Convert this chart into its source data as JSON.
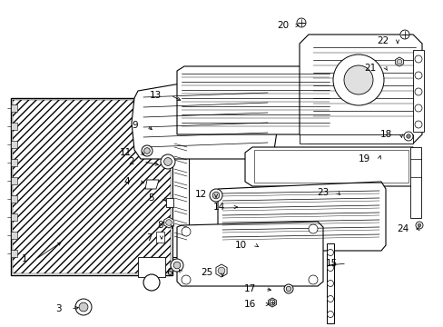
{
  "bg": "#ffffff",
  "lc": "#000000",
  "gray": "#aaaaaa",
  "light": "#e8e8e8",
  "mid": "#cccccc",
  "label_positions": {
    "1": [
      30,
      285,
      70,
      265
    ],
    "2": [
      148,
      178,
      178,
      182
    ],
    "3": [
      68,
      340,
      90,
      338
    ],
    "4": [
      143,
      200,
      162,
      202
    ],
    "5": [
      170,
      218,
      183,
      222
    ],
    "6": [
      190,
      300,
      195,
      294
    ],
    "7": [
      168,
      262,
      178,
      264
    ],
    "8": [
      180,
      248,
      190,
      252
    ],
    "9": [
      152,
      138,
      170,
      145
    ],
    "10": [
      272,
      270,
      285,
      272
    ],
    "11": [
      145,
      168,
      162,
      172
    ],
    "12": [
      228,
      214,
      238,
      218
    ],
    "13": [
      178,
      105,
      202,
      112
    ],
    "14": [
      248,
      228,
      265,
      228
    ],
    "15": [
      372,
      290,
      362,
      292
    ],
    "16": [
      282,
      335,
      300,
      335
    ],
    "17": [
      282,
      318,
      302,
      320
    ],
    "18": [
      432,
      148,
      443,
      155
    ],
    "19": [
      408,
      175,
      420,
      168
    ],
    "20": [
      318,
      28,
      330,
      28
    ],
    "21": [
      415,
      75,
      428,
      80
    ],
    "22": [
      428,
      45,
      438,
      48
    ],
    "23": [
      362,
      212,
      375,
      215
    ],
    "24": [
      450,
      252,
      458,
      252
    ],
    "25": [
      235,
      300,
      245,
      305
    ]
  }
}
